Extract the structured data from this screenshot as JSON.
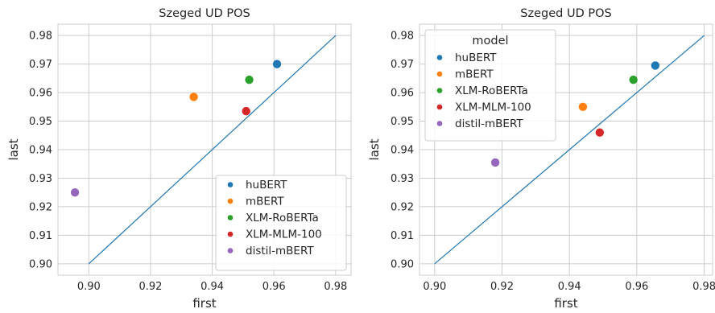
{
  "chart_data": [
    {
      "type": "scatter",
      "title": "Szeged UD POS",
      "xlabel": "first",
      "ylabel": "last",
      "xlim": [
        0.89,
        0.985
      ],
      "ylim": [
        0.896,
        0.984
      ],
      "xticks": [
        "0.90",
        "0.92",
        "0.94",
        "0.96",
        "0.98"
      ],
      "yticks": [
        "0.90",
        "0.91",
        "0.92",
        "0.93",
        "0.94",
        "0.95",
        "0.96",
        "0.97",
        "0.98"
      ],
      "grid": true,
      "diagonal": [
        [
          0.9,
          0.9
        ],
        [
          0.98,
          0.98
        ]
      ],
      "legend": {
        "title": "",
        "placement": "lower-right"
      },
      "series": [
        {
          "name": "huBERT",
          "color": "#1f77b4",
          "x": 0.961,
          "y": 0.97
        },
        {
          "name": "mBERT",
          "color": "#ff7f0e",
          "x": 0.934,
          "y": 0.9585
        },
        {
          "name": "XLM-RoBERTa",
          "color": "#2ca02c",
          "x": 0.952,
          "y": 0.9645
        },
        {
          "name": "XLM-MLM-100",
          "color": "#d62728",
          "x": 0.951,
          "y": 0.9535
        },
        {
          "name": "distil-mBERT",
          "color": "#9467bd",
          "x": 0.8955,
          "y": 0.925
        }
      ]
    },
    {
      "type": "scatter",
      "title": "Szeged UD POS",
      "xlabel": "first",
      "ylabel": "last",
      "xlim": [
        0.8955,
        0.9825
      ],
      "ylim": [
        0.896,
        0.984
      ],
      "xticks": [
        "0.90",
        "0.92",
        "0.94",
        "0.96",
        "0.98"
      ],
      "yticks": [
        "0.90",
        "0.91",
        "0.92",
        "0.93",
        "0.94",
        "0.95",
        "0.96",
        "0.97",
        "0.98"
      ],
      "grid": true,
      "diagonal": [
        [
          0.9,
          0.9
        ],
        [
          0.98,
          0.98
        ]
      ],
      "legend": {
        "title": "model",
        "placement": "upper-left"
      },
      "series": [
        {
          "name": "huBERT",
          "color": "#1f77b4",
          "x": 0.9655,
          "y": 0.9695
        },
        {
          "name": "mBERT",
          "color": "#ff7f0e",
          "x": 0.944,
          "y": 0.955
        },
        {
          "name": "XLM-RoBERTa",
          "color": "#2ca02c",
          "x": 0.959,
          "y": 0.9645
        },
        {
          "name": "XLM-MLM-100",
          "color": "#d62728",
          "x": 0.949,
          "y": 0.946
        },
        {
          "name": "distil-mBERT",
          "color": "#9467bd",
          "x": 0.918,
          "y": 0.9355
        }
      ]
    }
  ]
}
